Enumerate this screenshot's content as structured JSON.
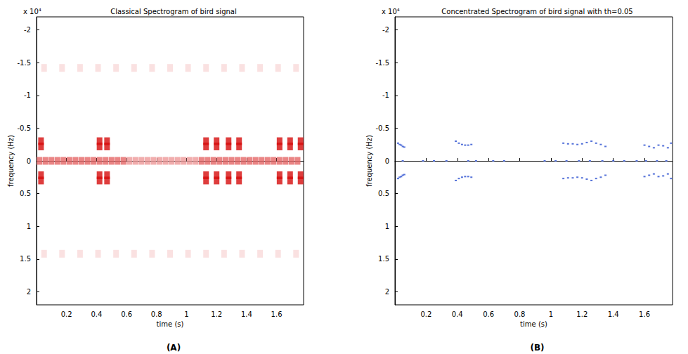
{
  "chart_data": [
    {
      "type": "heatmap",
      "title": "Classical Spectrogram of bird signal",
      "xlabel": "time (s)",
      "ylabel": "frequency (Hz)",
      "annotations": [
        "x 10⁴"
      ],
      "panel": "(A)",
      "xlim": [
        0,
        1.78
      ],
      "xticks": [
        0.2,
        0.4,
        0.6,
        0.8,
        1,
        1.2,
        1.4,
        1.6
      ],
      "ylim": [
        -2.2,
        2.2
      ],
      "yticks": [
        -2,
        -1.5,
        -1,
        -0.5,
        0,
        0.5,
        1,
        1.5,
        2
      ],
      "grid": false,
      "color": "#d40000",
      "intensity_range": [
        0,
        1
      ],
      "points": [
        [
          0.02,
          0,
          0.6
        ],
        [
          0.06,
          0,
          0.6
        ],
        [
          0.1,
          0,
          0.6
        ],
        [
          0.14,
          0,
          0.6
        ],
        [
          0.18,
          0,
          0.6
        ],
        [
          0.22,
          0,
          0.6
        ],
        [
          0.26,
          0,
          0.6
        ],
        [
          0.3,
          0,
          0.6
        ],
        [
          0.34,
          0,
          0.6
        ],
        [
          0.38,
          0,
          0.6
        ],
        [
          0.42,
          0,
          0.6
        ],
        [
          0.46,
          0,
          0.6
        ],
        [
          0.5,
          0,
          0.6
        ],
        [
          0.54,
          0,
          0.6
        ],
        [
          0.58,
          0,
          0.6
        ],
        [
          0.62,
          0,
          0.4
        ],
        [
          0.66,
          0,
          0.4
        ],
        [
          0.7,
          0,
          0.4
        ],
        [
          0.74,
          0,
          0.4
        ],
        [
          0.78,
          0,
          0.4
        ],
        [
          0.82,
          0,
          0.4
        ],
        [
          0.86,
          0,
          0.4
        ],
        [
          0.9,
          0,
          0.4
        ],
        [
          0.94,
          0,
          0.4
        ],
        [
          0.98,
          0,
          0.4
        ],
        [
          1.02,
          0,
          0.4
        ],
        [
          1.06,
          0,
          0.4
        ],
        [
          1.1,
          0,
          0.6
        ],
        [
          1.14,
          0,
          0.6
        ],
        [
          1.18,
          0,
          0.6
        ],
        [
          1.22,
          0,
          0.6
        ],
        [
          1.26,
          0,
          0.6
        ],
        [
          1.3,
          0,
          0.6
        ],
        [
          1.34,
          0,
          0.6
        ],
        [
          1.38,
          0,
          0.6
        ],
        [
          1.42,
          0,
          0.6
        ],
        [
          1.46,
          0,
          0.6
        ],
        [
          1.5,
          0,
          0.6
        ],
        [
          1.54,
          0,
          0.6
        ],
        [
          1.58,
          0,
          0.6
        ],
        [
          1.62,
          0,
          0.6
        ],
        [
          1.66,
          0,
          0.6
        ],
        [
          1.7,
          0,
          0.6
        ],
        [
          1.74,
          0,
          0.6
        ],
        [
          0.03,
          -0.3,
          0.95
        ],
        [
          0.03,
          -0.22,
          0.95
        ],
        [
          0.03,
          0.22,
          0.95
        ],
        [
          0.03,
          0.3,
          0.95
        ],
        [
          0.42,
          -0.3,
          0.95
        ],
        [
          0.42,
          -0.22,
          0.95
        ],
        [
          0.42,
          0.22,
          0.95
        ],
        [
          0.42,
          0.3,
          0.95
        ],
        [
          0.47,
          -0.3,
          0.95
        ],
        [
          0.47,
          -0.22,
          0.95
        ],
        [
          0.47,
          0.22,
          0.95
        ],
        [
          0.47,
          0.3,
          0.95
        ],
        [
          1.13,
          -0.3,
          0.95
        ],
        [
          1.13,
          -0.22,
          0.95
        ],
        [
          1.13,
          0.22,
          0.95
        ],
        [
          1.13,
          0.3,
          0.95
        ],
        [
          1.2,
          -0.3,
          0.95
        ],
        [
          1.2,
          -0.22,
          0.95
        ],
        [
          1.2,
          0.22,
          0.95
        ],
        [
          1.2,
          0.3,
          0.95
        ],
        [
          1.28,
          -0.3,
          0.95
        ],
        [
          1.28,
          -0.22,
          0.95
        ],
        [
          1.28,
          0.22,
          0.95
        ],
        [
          1.28,
          0.3,
          0.95
        ],
        [
          1.35,
          -0.3,
          0.95
        ],
        [
          1.35,
          -0.22,
          0.95
        ],
        [
          1.35,
          0.22,
          0.95
        ],
        [
          1.35,
          0.3,
          0.95
        ],
        [
          1.62,
          -0.3,
          0.95
        ],
        [
          1.62,
          -0.22,
          0.95
        ],
        [
          1.62,
          0.22,
          0.95
        ],
        [
          1.62,
          0.3,
          0.95
        ],
        [
          1.69,
          -0.3,
          0.95
        ],
        [
          1.69,
          -0.22,
          0.95
        ],
        [
          1.69,
          0.22,
          0.95
        ],
        [
          1.69,
          0.3,
          0.95
        ],
        [
          1.76,
          -0.3,
          0.95
        ],
        [
          1.76,
          -0.22,
          0.95
        ],
        [
          1.76,
          0.22,
          0.95
        ],
        [
          1.76,
          0.3,
          0.95
        ],
        [
          0.05,
          -1.42,
          0.15
        ],
        [
          0.17,
          -1.42,
          0.15
        ],
        [
          0.29,
          -1.42,
          0.15
        ],
        [
          0.41,
          -1.42,
          0.15
        ],
        [
          0.53,
          -1.42,
          0.15
        ],
        [
          0.65,
          -1.42,
          0.15
        ],
        [
          0.77,
          -1.42,
          0.15
        ],
        [
          0.89,
          -1.42,
          0.15
        ],
        [
          1.01,
          -1.42,
          0.15
        ],
        [
          1.13,
          -1.42,
          0.15
        ],
        [
          1.25,
          -1.42,
          0.15
        ],
        [
          1.37,
          -1.42,
          0.15
        ],
        [
          1.49,
          -1.42,
          0.15
        ],
        [
          1.61,
          -1.42,
          0.15
        ],
        [
          1.73,
          -1.42,
          0.15
        ],
        [
          0.05,
          1.42,
          0.15
        ],
        [
          0.17,
          1.42,
          0.15
        ],
        [
          0.29,
          1.42,
          0.15
        ],
        [
          0.41,
          1.42,
          0.15
        ],
        [
          0.53,
          1.42,
          0.15
        ],
        [
          0.65,
          1.42,
          0.15
        ],
        [
          0.77,
          1.42,
          0.15
        ],
        [
          0.89,
          1.42,
          0.15
        ],
        [
          1.01,
          1.42,
          0.15
        ],
        [
          1.13,
          1.42,
          0.15
        ],
        [
          1.25,
          1.42,
          0.15
        ],
        [
          1.37,
          1.42,
          0.15
        ],
        [
          1.49,
          1.42,
          0.15
        ],
        [
          1.61,
          1.42,
          0.15
        ],
        [
          1.73,
          1.42,
          0.15
        ]
      ]
    },
    {
      "type": "scatter",
      "title": "Concentrated Spectrogram of bird signal with th=0.05",
      "xlabel": "time (s)",
      "ylabel": "frequency (Hz)",
      "annotations": [
        "x 10⁴"
      ],
      "panel": "(B)",
      "xlim": [
        0,
        1.78
      ],
      "xticks": [
        0.2,
        0.4,
        0.6,
        0.8,
        1,
        1.2,
        1.4,
        1.6
      ],
      "ylim": [
        -2.2,
        2.2
      ],
      "yticks": [
        -2,
        -1.5,
        -1,
        -0.5,
        0,
        0.5,
        1,
        1.5,
        2
      ],
      "grid": false,
      "color": "#2a4fd0",
      "points": [
        [
          0.02,
          -0.27
        ],
        [
          0.03,
          -0.25
        ],
        [
          0.04,
          -0.24
        ],
        [
          0.05,
          -0.22
        ],
        [
          0.06,
          -0.21
        ],
        [
          0.39,
          -0.3
        ],
        [
          0.41,
          -0.27
        ],
        [
          0.43,
          -0.25
        ],
        [
          0.45,
          -0.24
        ],
        [
          0.47,
          -0.24
        ],
        [
          0.49,
          -0.25
        ],
        [
          1.08,
          -0.27
        ],
        [
          1.11,
          -0.26
        ],
        [
          1.14,
          -0.26
        ],
        [
          1.17,
          -0.25
        ],
        [
          1.2,
          -0.26
        ],
        [
          1.23,
          -0.28
        ],
        [
          1.26,
          -0.3
        ],
        [
          1.29,
          -0.27
        ],
        [
          1.32,
          -0.25
        ],
        [
          1.35,
          -0.22
        ],
        [
          1.6,
          -0.24
        ],
        [
          1.63,
          -0.22
        ],
        [
          1.66,
          -0.2
        ],
        [
          1.69,
          -0.24
        ],
        [
          1.72,
          -0.23
        ],
        [
          1.75,
          -0.2
        ],
        [
          1.77,
          -0.27
        ],
        [
          0.02,
          0.27
        ],
        [
          0.03,
          0.25
        ],
        [
          0.04,
          0.24
        ],
        [
          0.05,
          0.22
        ],
        [
          0.06,
          0.21
        ],
        [
          0.39,
          0.3
        ],
        [
          0.41,
          0.27
        ],
        [
          0.43,
          0.25
        ],
        [
          0.45,
          0.24
        ],
        [
          0.47,
          0.24
        ],
        [
          0.49,
          0.25
        ],
        [
          1.08,
          0.27
        ],
        [
          1.11,
          0.26
        ],
        [
          1.14,
          0.26
        ],
        [
          1.17,
          0.25
        ],
        [
          1.2,
          0.26
        ],
        [
          1.23,
          0.28
        ],
        [
          1.26,
          0.3
        ],
        [
          1.29,
          0.27
        ],
        [
          1.32,
          0.25
        ],
        [
          1.35,
          0.22
        ],
        [
          1.6,
          0.24
        ],
        [
          1.63,
          0.22
        ],
        [
          1.66,
          0.2
        ],
        [
          1.69,
          0.24
        ],
        [
          1.72,
          0.23
        ],
        [
          1.75,
          0.2
        ],
        [
          1.77,
          0.27
        ],
        [
          0.05,
          0
        ],
        [
          0.18,
          0
        ],
        [
          0.25,
          0
        ],
        [
          0.33,
          0
        ],
        [
          0.47,
          0
        ],
        [
          0.52,
          0
        ],
        [
          0.63,
          0
        ],
        [
          0.7,
          0
        ],
        [
          0.96,
          0
        ],
        [
          1.03,
          0
        ],
        [
          1.1,
          0
        ],
        [
          1.18,
          0
        ],
        [
          1.25,
          0
        ],
        [
          1.33,
          0
        ],
        [
          1.4,
          0
        ],
        [
          1.47,
          0
        ],
        [
          1.55,
          0
        ],
        [
          1.61,
          0
        ],
        [
          1.68,
          0
        ],
        [
          1.74,
          0
        ]
      ]
    }
  ]
}
